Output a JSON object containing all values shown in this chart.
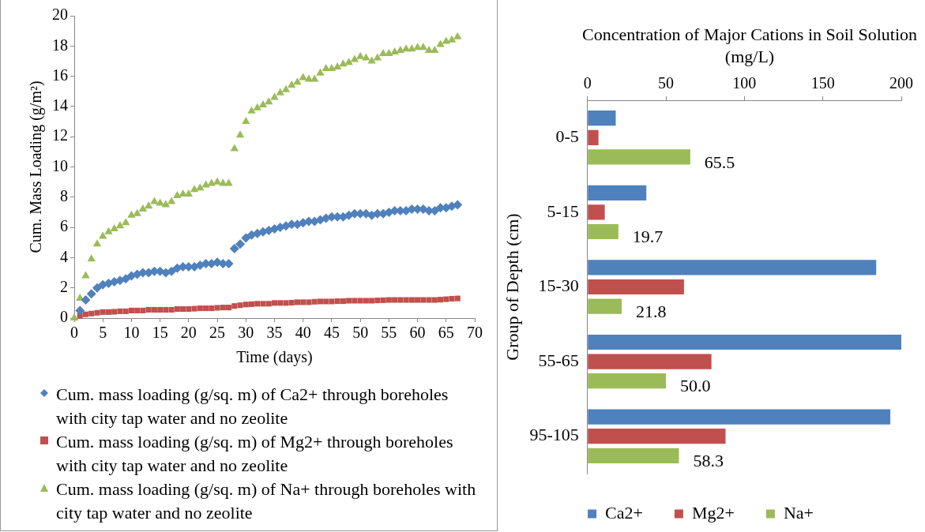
{
  "chart_data": [
    {
      "type": "scatter",
      "ylabel": "Cum. Mass Loading (g/m²)",
      "xlabel": "Time (days)",
      "xlim": [
        0,
        70
      ],
      "xticks": [
        0,
        5,
        10,
        15,
        20,
        25,
        30,
        35,
        40,
        45,
        50,
        55,
        60,
        65,
        70
      ],
      "ylim": [
        0,
        20
      ],
      "yticks": [
        0,
        2,
        4,
        6,
        8,
        10,
        12,
        14,
        16,
        18,
        20
      ],
      "grid": false,
      "legend": "bottom",
      "x": [
        0,
        1,
        2,
        3,
        4,
        5,
        6,
        7,
        8,
        9,
        10,
        11,
        12,
        13,
        14,
        15,
        16,
        17,
        18,
        19,
        20,
        21,
        22,
        23,
        24,
        25,
        26,
        27,
        28,
        29,
        30,
        31,
        32,
        33,
        34,
        35,
        36,
        37,
        38,
        39,
        40,
        41,
        42,
        43,
        44,
        45,
        46,
        47,
        48,
        49,
        50,
        51,
        52,
        53,
        54,
        55,
        56,
        57,
        58,
        59,
        60,
        61,
        62,
        63,
        64,
        65,
        66,
        67
      ],
      "series": [
        {
          "name": "Cum. mass loading (g/sq. m) of Ca2+ through boreholes with city tap water and no zeolite",
          "color": "#4f81bd",
          "marker": "diamond",
          "values": [
            null,
            0.5,
            1.2,
            1.6,
            2.0,
            2.2,
            2.3,
            2.4,
            2.5,
            2.6,
            2.8,
            2.9,
            3.0,
            3.0,
            3.1,
            3.1,
            3.0,
            3.1,
            3.3,
            3.4,
            3.4,
            3.4,
            3.5,
            3.6,
            3.6,
            3.7,
            3.6,
            3.6,
            4.6,
            4.9,
            5.3,
            5.5,
            5.6,
            5.7,
            5.8,
            5.9,
            6.0,
            6.1,
            6.2,
            6.2,
            6.3,
            6.4,
            6.4,
            6.5,
            6.6,
            6.7,
            6.7,
            6.7,
            6.8,
            6.9,
            6.9,
            6.9,
            6.8,
            6.9,
            6.9,
            7.0,
            7.1,
            7.1,
            7.1,
            7.2,
            7.2,
            7.2,
            7.1,
            7.1,
            7.3,
            7.3,
            7.4,
            7.5
          ]
        },
        {
          "name": "Cum. mass loading (g/sq. m) of Mg2+ through boreholes with city tap water and no zeolite",
          "color": "#c0504d",
          "marker": "square",
          "values": [
            null,
            0.15,
            0.25,
            0.3,
            0.35,
            0.4,
            0.4,
            0.42,
            0.45,
            0.45,
            0.5,
            0.5,
            0.5,
            0.55,
            0.55,
            0.55,
            0.55,
            0.55,
            0.6,
            0.6,
            0.6,
            0.62,
            0.65,
            0.65,
            0.65,
            0.68,
            0.7,
            0.7,
            0.8,
            0.85,
            0.9,
            0.92,
            0.95,
            0.95,
            0.95,
            1.0,
            1.0,
            1.0,
            1.02,
            1.05,
            1.05,
            1.05,
            1.08,
            1.1,
            1.1,
            1.1,
            1.12,
            1.12,
            1.15,
            1.15,
            1.15,
            1.15,
            1.15,
            1.17,
            1.18,
            1.2,
            1.2,
            1.2,
            1.2,
            1.2,
            1.2,
            1.2,
            1.2,
            1.2,
            1.22,
            1.25,
            1.28,
            1.3
          ]
        },
        {
          "name": "Cum. mass loading (g/sq. m) of Na+ through boreholes with city tap water and no zeolite",
          "color": "#9bbb59",
          "marker": "triangle",
          "values": [
            0,
            1.3,
            2.8,
            3.9,
            4.9,
            5.4,
            5.7,
            5.9,
            6.1,
            6.3,
            6.8,
            6.9,
            7.2,
            7.4,
            7.7,
            7.6,
            7.5,
            7.7,
            8.1,
            8.2,
            8.2,
            8.5,
            8.6,
            8.8,
            8.9,
            9.0,
            8.9,
            8.9,
            11.2,
            12.1,
            13.0,
            13.7,
            13.9,
            14.1,
            14.3,
            14.6,
            14.9,
            15.1,
            15.4,
            15.6,
            15.9,
            15.8,
            15.8,
            16.2,
            16.5,
            16.5,
            16.6,
            16.8,
            16.9,
            17.1,
            17.3,
            17.2,
            17.0,
            17.2,
            17.5,
            17.5,
            17.6,
            17.7,
            17.8,
            17.8,
            17.9,
            17.9,
            17.7,
            17.7,
            18.1,
            18.3,
            18.4,
            18.6
          ]
        }
      ]
    },
    {
      "type": "bar",
      "orientation": "horizontal",
      "xlabel": "Concentration of Major Cations in Soil Solution (mg/L)",
      "ylabel": "Group of Depth (cm)",
      "xlim": [
        0,
        200
      ],
      "xticks": [
        0,
        50,
        100,
        150,
        200
      ],
      "grid": false,
      "legend": "bottom",
      "categories": [
        "0-5",
        "5-15",
        "15-30",
        "55-65",
        "95-105"
      ],
      "series": [
        {
          "name": "Ca2+",
          "color": "#4f81bd",
          "values": [
            18,
            37.5,
            184,
            200,
            193
          ]
        },
        {
          "name": "Mg2+",
          "color": "#c0504d",
          "values": [
            7,
            11,
            61.5,
            79,
            88
          ]
        },
        {
          "name": "Na+",
          "color": "#9bbb59",
          "values": [
            65.5,
            19.7,
            21.8,
            50.0,
            58.3
          ],
          "value_labels": [
            "65.5",
            "19.7",
            "21.8",
            "50.0",
            "58.3"
          ]
        }
      ]
    }
  ]
}
